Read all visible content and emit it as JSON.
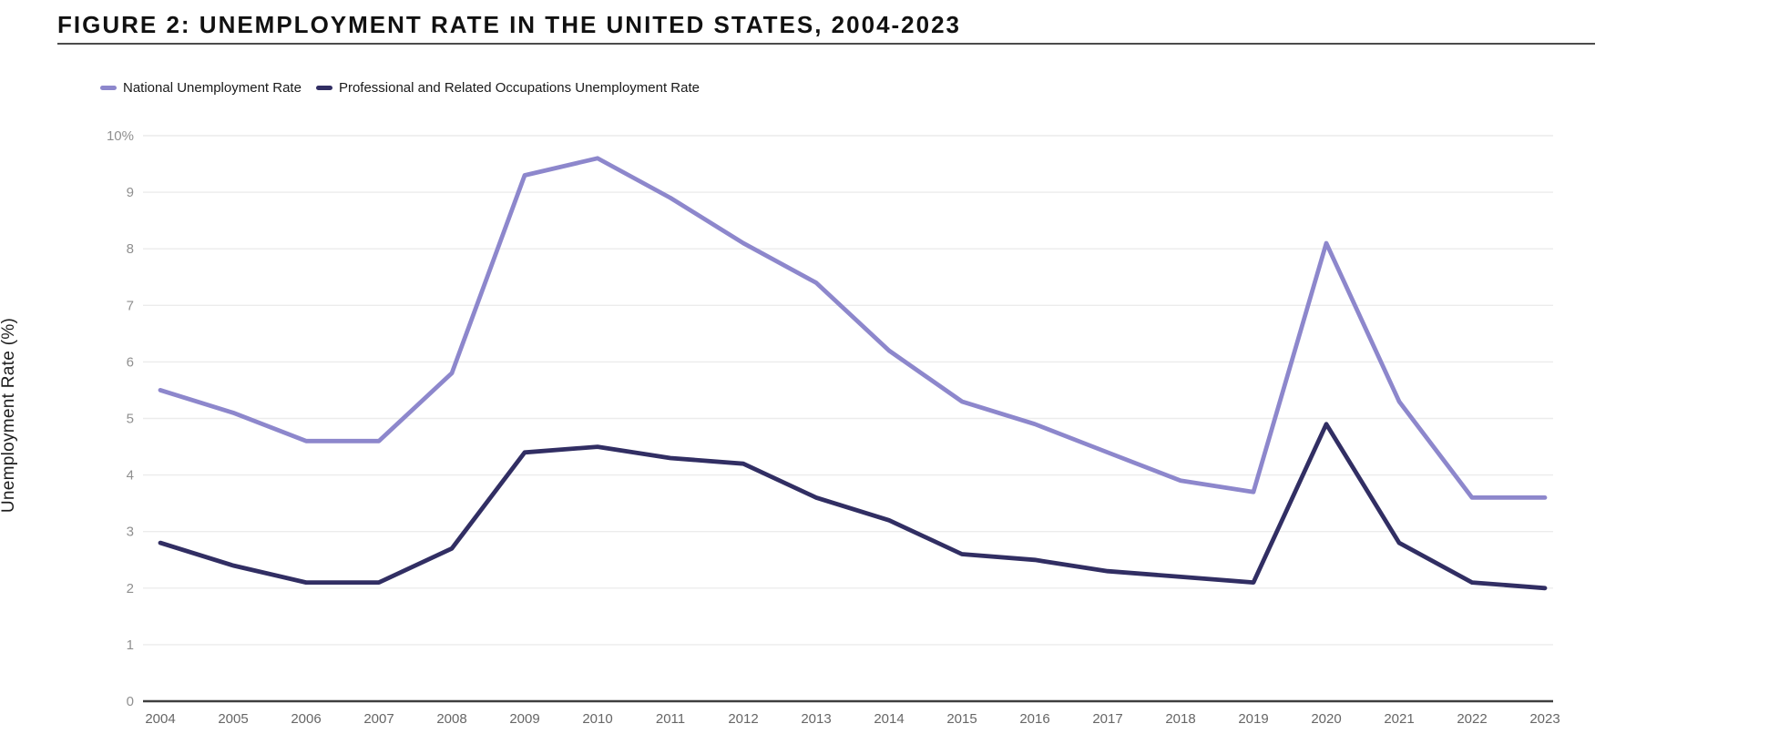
{
  "figure": {
    "title": "FIGURE 2: UNEMPLOYMENT RATE IN THE UNITED STATES, 2004-2023"
  },
  "chart_data": {
    "type": "line",
    "title": "FIGURE 2: UNEMPLOYMENT RATE IN THE UNITED STATES, 2004-2023",
    "x": [
      2004,
      2005,
      2006,
      2007,
      2008,
      2009,
      2010,
      2011,
      2012,
      2013,
      2014,
      2015,
      2016,
      2017,
      2018,
      2019,
      2020,
      2021,
      2022,
      2023
    ],
    "series": [
      {
        "name": "National Unemployment Rate",
        "color": "#8d87cc",
        "values": [
          5.5,
          5.1,
          4.6,
          4.6,
          5.8,
          9.3,
          9.6,
          8.9,
          8.1,
          7.4,
          6.2,
          5.3,
          4.9,
          4.4,
          3.9,
          3.7,
          8.1,
          5.3,
          3.6,
          3.6
        ]
      },
      {
        "name": "Professional and Related Occupations Unemployment Rate",
        "color": "#312e63",
        "values": [
          2.8,
          2.4,
          2.1,
          2.1,
          2.7,
          4.4,
          4.5,
          4.3,
          4.2,
          3.6,
          3.2,
          2.6,
          2.5,
          2.3,
          2.2,
          2.1,
          4.9,
          2.8,
          2.1,
          2.0
        ]
      }
    ],
    "xlabel": "",
    "ylabel": "Unemployment Rate (%)",
    "ylim": [
      0,
      10
    ],
    "yticks": [
      "0",
      "1",
      "2",
      "3",
      "4",
      "5",
      "6",
      "7",
      "8",
      "9",
      "10%"
    ],
    "grid": "horizontal",
    "legend_position": "top-left"
  }
}
